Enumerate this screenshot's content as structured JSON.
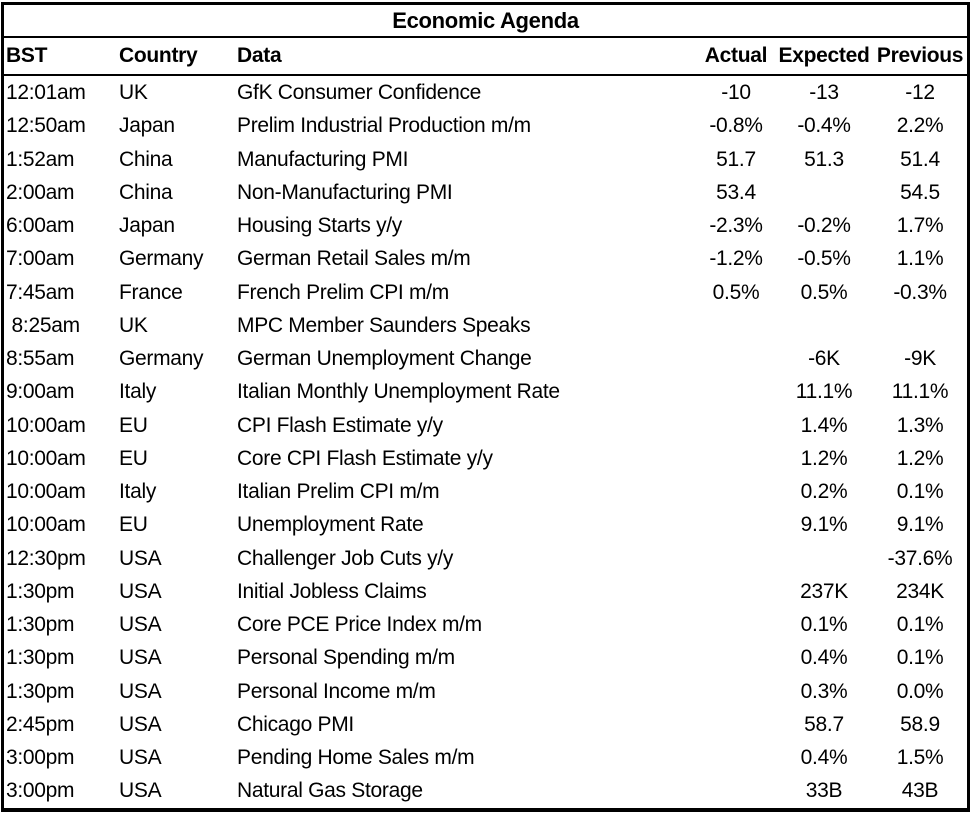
{
  "title": "Economic Agenda",
  "columns": {
    "time": "BST",
    "country": "Country",
    "data": "Data",
    "actual": "Actual",
    "expected": "Expected",
    "previous": "Previous"
  },
  "colors": {
    "text": "#000000",
    "background": "#ffffff",
    "border": "#000000"
  },
  "rows": [
    {
      "time": "12:01am",
      "country": "UK",
      "data": "GfK Consumer Confidence",
      "actual": "-10",
      "expected": "-13",
      "previous": "-12"
    },
    {
      "time": "12:50am",
      "country": "Japan",
      "data": "Prelim Industrial Production m/m",
      "actual": "-0.8%",
      "expected": "-0.4%",
      "previous": "2.2%"
    },
    {
      "time": "1:52am",
      "country": "China",
      "data": "Manufacturing PMI",
      "actual": "51.7",
      "expected": "51.3",
      "previous": "51.4"
    },
    {
      "time": "2:00am",
      "country": "China",
      "data": "Non-Manufacturing PMI",
      "actual": "53.4",
      "expected": "",
      "previous": "54.5"
    },
    {
      "time": "6:00am",
      "country": "Japan",
      "data": "Housing Starts y/y",
      "actual": "-2.3%",
      "expected": "-0.2%",
      "previous": "1.7%"
    },
    {
      "time": "7:00am",
      "country": "Germany",
      "data": "German Retail Sales m/m",
      "actual": "-1.2%",
      "expected": "-0.5%",
      "previous": "1.1%"
    },
    {
      "time": "7:45am",
      "country": "France",
      "data": "French Prelim CPI m/m",
      "actual": "0.5%",
      "expected": "0.5%",
      "previous": "-0.3%"
    },
    {
      "time": " 8:25am",
      "country": "UK",
      "data": "MPC Member Saunders Speaks",
      "actual": "",
      "expected": "",
      "previous": ""
    },
    {
      "time": "8:55am",
      "country": "Germany",
      "data": "German Unemployment Change",
      "actual": "",
      "expected": "-6K",
      "previous": "-9K"
    },
    {
      "time": "9:00am",
      "country": "Italy",
      "data": "Italian Monthly Unemployment Rate",
      "actual": "",
      "expected": "11.1%",
      "previous": "11.1%"
    },
    {
      "time": "10:00am",
      "country": "EU",
      "data": "CPI Flash Estimate y/y",
      "actual": "",
      "expected": "1.4%",
      "previous": "1.3%"
    },
    {
      "time": "10:00am",
      "country": "EU",
      "data": "Core CPI Flash Estimate y/y",
      "actual": "",
      "expected": "1.2%",
      "previous": "1.2%"
    },
    {
      "time": "10:00am",
      "country": "Italy",
      "data": "Italian Prelim CPI m/m",
      "actual": "",
      "expected": "0.2%",
      "previous": "0.1%"
    },
    {
      "time": "10:00am",
      "country": "EU",
      "data": "Unemployment Rate",
      "actual": "",
      "expected": "9.1%",
      "previous": "9.1%"
    },
    {
      "time": "12:30pm",
      "country": "USA",
      "data": "Challenger Job Cuts y/y",
      "actual": "",
      "expected": "",
      "previous": "-37.6%"
    },
    {
      "time": "1:30pm",
      "country": "USA",
      "data": "Initial Jobless Claims",
      "actual": "",
      "expected": "237K",
      "previous": "234K"
    },
    {
      "time": "1:30pm",
      "country": "USA",
      "data": "Core PCE Price Index m/m",
      "actual": "",
      "expected": "0.1%",
      "previous": "0.1%"
    },
    {
      "time": "1:30pm",
      "country": "USA",
      "data": "Personal Spending m/m",
      "actual": "",
      "expected": "0.4%",
      "previous": "0.1%"
    },
    {
      "time": "1:30pm",
      "country": "USA",
      "data": "Personal Income m/m",
      "actual": "",
      "expected": "0.3%",
      "previous": "0.0%"
    },
    {
      "time": "2:45pm",
      "country": "USA",
      "data": "Chicago PMI",
      "actual": "",
      "expected": "58.7",
      "previous": "58.9"
    },
    {
      "time": "3:00pm",
      "country": "USA",
      "data": "Pending Home Sales m/m",
      "actual": "",
      "expected": "0.4%",
      "previous": "1.5%"
    },
    {
      "time": "3:00pm",
      "country": "USA",
      "data": "Natural Gas Storage",
      "actual": "",
      "expected": "33B",
      "previous": "43B"
    }
  ]
}
